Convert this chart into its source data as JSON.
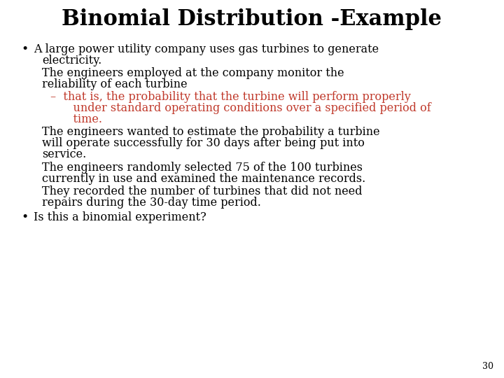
{
  "title": "Binomial Distribution -Example",
  "title_fontsize": 22,
  "title_fontweight": "bold",
  "title_color": "#000000",
  "background_color": "#ffffff",
  "page_number": "30",
  "bullet1_line1": "A large power utility company uses gas turbines to generate",
  "bullet1_line2": "electricity.",
  "para1_line1": "The engineers employed at the company monitor the",
  "para1_line2": "reliability of each turbine",
  "sub_line1": "–  that is, the probability that the turbine will perform properly",
  "sub_line2": "    under standard operating conditions over a specified period of",
  "sub_line3": "    time.",
  "para2_line1": "The engineers wanted to estimate the probability a turbine",
  "para2_line2": "will operate successfully for 30 days after being put into",
  "para2_line3": "service.",
  "para3_line1": "The engineers randomly selected 75 of the 100 turbines",
  "para3_line2": "currently in use and examined the maintenance records.",
  "para4_line1": "They recorded the number of turbines that did not need",
  "para4_line2": "repairs during the 30-day time period.",
  "bullet2_line1": "Is this a binomial experiment?",
  "black_color": "#000000",
  "red_color": "#c0392b",
  "body_fontsize": 11.5,
  "sub_fontsize": 11.5,
  "page_num_fontsize": 9
}
